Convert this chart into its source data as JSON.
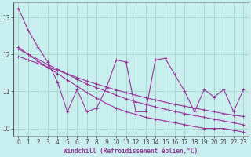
{
  "background_color": "#c8eef0",
  "grid_color": "#a0d8c8",
  "line_color": "#993399",
  "xlim": [
    -0.5,
    23.5
  ],
  "ylim": [
    9.8,
    13.4
  ],
  "xlabel": "Windchill (Refroidissement éolien,°C)",
  "yticks": [
    10,
    11,
    12,
    13
  ],
  "xticks": [
    0,
    1,
    2,
    3,
    4,
    5,
    6,
    7,
    8,
    9,
    10,
    11,
    12,
    13,
    14,
    15,
    16,
    17,
    18,
    19,
    20,
    21,
    22,
    23
  ],
  "series_jagged": [
    13.25,
    12.65,
    12.2,
    11.8,
    11.25,
    10.45,
    11.05,
    10.45,
    10.55,
    11.1,
    11.85,
    11.8,
    10.45,
    10.45,
    11.85,
    11.9,
    11.45,
    11.0,
    10.45,
    11.05,
    10.85,
    11.05,
    10.45,
    11.05
  ],
  "series_line1": [
    12.2,
    12.0,
    11.82,
    11.65,
    11.48,
    11.31,
    11.14,
    10.97,
    10.82,
    10.67,
    10.55,
    10.45,
    10.38,
    10.3,
    10.25,
    10.2,
    10.15,
    10.1,
    10.05,
    10.0,
    10.0,
    10.0,
    9.95,
    9.9
  ],
  "series_line2": [
    12.15,
    12.0,
    11.87,
    11.73,
    11.6,
    11.47,
    11.33,
    11.2,
    11.1,
    11.0,
    10.9,
    10.8,
    10.72,
    10.65,
    10.58,
    10.52,
    10.46,
    10.4,
    10.35,
    10.3,
    10.25,
    10.2,
    10.15,
    10.1
  ],
  "series_line3": [
    11.95,
    11.85,
    11.76,
    11.66,
    11.57,
    11.47,
    11.38,
    11.28,
    11.2,
    11.12,
    11.04,
    10.97,
    10.9,
    10.83,
    10.77,
    10.71,
    10.65,
    10.6,
    10.55,
    10.5,
    10.45,
    10.4,
    10.36,
    10.32
  ]
}
